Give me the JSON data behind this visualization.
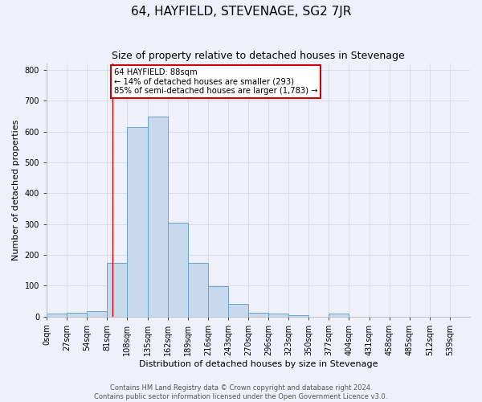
{
  "title": "64, HAYFIELD, STEVENAGE, SG2 7JR",
  "subtitle": "Size of property relative to detached houses in Stevenage",
  "xlabel": "Distribution of detached houses by size in Stevenage",
  "ylabel": "Number of detached properties",
  "bar_color": "#c8d9ee",
  "bar_edge_color": "#6aa3cc",
  "categories": [
    "0sqm",
    "27sqm",
    "54sqm",
    "81sqm",
    "108sqm",
    "135sqm",
    "162sqm",
    "189sqm",
    "216sqm",
    "243sqm",
    "270sqm",
    "296sqm",
    "323sqm",
    "350sqm",
    "377sqm",
    "404sqm",
    "431sqm",
    "458sqm",
    "485sqm",
    "512sqm",
    "539sqm"
  ],
  "values": [
    8,
    12,
    17,
    175,
    615,
    650,
    305,
    175,
    98,
    40,
    13,
    8,
    5,
    0,
    8,
    0,
    0,
    0,
    0,
    0,
    0
  ],
  "bin_width": 27,
  "property_size": 88,
  "property_line_color": "#cc0000",
  "annotation_text": "64 HAYFIELD: 88sqm\n← 14% of detached houses are smaller (293)\n85% of semi-detached houses are larger (1,783) →",
  "annotation_box_color": "#ffffff",
  "annotation_box_edge_color": "#cc0000",
  "ylim": [
    0,
    820
  ],
  "yticks": [
    0,
    100,
    200,
    300,
    400,
    500,
    600,
    700,
    800
  ],
  "grid_color": "#d8dce8",
  "bg_color": "#eef1f9",
  "footer_line1": "Contains HM Land Registry data © Crown copyright and database right 2024.",
  "footer_line2": "Contains public sector information licensed under the Open Government Licence v3.0.",
  "title_fontsize": 11,
  "subtitle_fontsize": 9,
  "axis_label_fontsize": 8,
  "tick_fontsize": 7,
  "footer_fontsize": 6
}
